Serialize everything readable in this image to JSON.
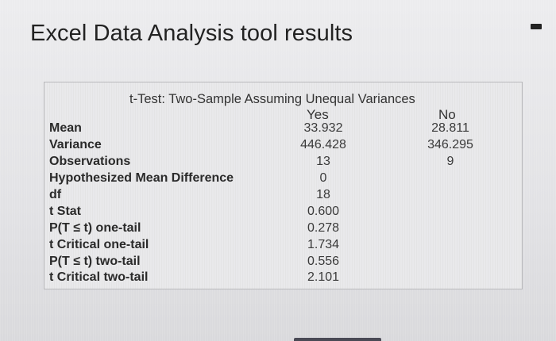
{
  "page": {
    "title": "Excel Data Analysis tool results"
  },
  "table": {
    "caption": "t-Test: Two-Sample Assuming Unequal Variances",
    "columns": [
      "Yes",
      "No"
    ],
    "rows": [
      {
        "label": "Mean",
        "yes": "33.932",
        "no": "28.811"
      },
      {
        "label": "Variance",
        "yes": "446.428",
        "no": "346.295"
      },
      {
        "label": "Observations",
        "yes": "13",
        "no": "9"
      },
      {
        "label": "Hypothesized Mean Difference",
        "yes": "0",
        "no": ""
      },
      {
        "label": "df",
        "yes": "18",
        "no": ""
      },
      {
        "label": "t Stat",
        "yes": "0.600",
        "no": ""
      },
      {
        "label": "P(T ≤ t) one-tail",
        "yes": "0.278",
        "no": ""
      },
      {
        "label": "t Critical one-tail",
        "yes": "1.734",
        "no": ""
      },
      {
        "label": "P(T ≤ t) two-tail",
        "yes": "0.556",
        "no": ""
      },
      {
        "label": "t Critical two-tail",
        "yes": "2.101",
        "no": ""
      }
    ]
  }
}
